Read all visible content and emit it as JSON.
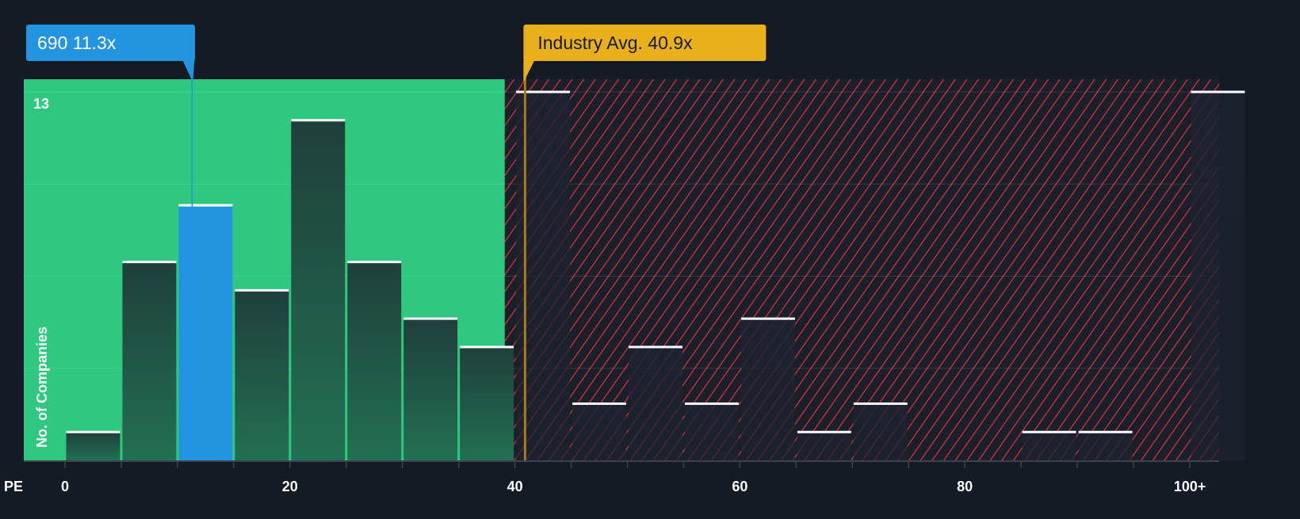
{
  "chart_data": {
    "type": "bar",
    "title": "",
    "xlabel": "PE",
    "ylabel": "No. of Companies",
    "bin_width": 5,
    "bins_start": [
      0,
      5,
      10,
      15,
      20,
      25,
      30,
      35,
      40,
      45,
      50,
      55,
      60,
      65,
      70,
      75,
      80,
      85,
      90,
      95,
      100
    ],
    "values": [
      1,
      7,
      9,
      6,
      12,
      7,
      5,
      4,
      13,
      2,
      4,
      2,
      5,
      1,
      2,
      0,
      0,
      1,
      1,
      0,
      13
    ],
    "highlight_bin_start": 10,
    "ylim": [
      0,
      13
    ],
    "y_tick_labels": [
      "13"
    ],
    "x_ticks": [
      0,
      20,
      40,
      60,
      80,
      100
    ],
    "x_tick_labels": [
      "0",
      "20",
      "40",
      "60",
      "80",
      "100+"
    ],
    "company": {
      "label": "690 11.3x",
      "value": 11.3
    },
    "industry": {
      "label": "Industry Avg. 40.9x",
      "value": 40.9
    },
    "fair_zone_end": 39.1,
    "colors": {
      "background": "#151b24",
      "green_zone": "#2ec97f",
      "highlight": "#2394e0",
      "industry": "#eab01b",
      "hatch": "#e0343c"
    }
  }
}
